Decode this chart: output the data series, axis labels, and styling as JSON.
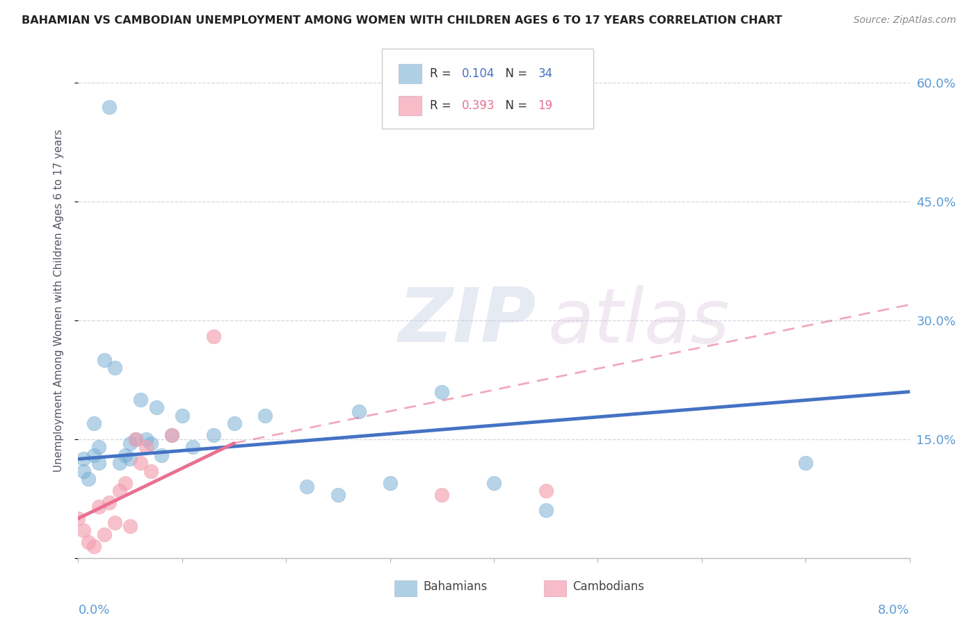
{
  "title": "BAHAMIAN VS CAMBODIAN UNEMPLOYMENT AMONG WOMEN WITH CHILDREN AGES 6 TO 17 YEARS CORRELATION CHART",
  "source": "Source: ZipAtlas.com",
  "ylabel": "Unemployment Among Women with Children Ages 6 to 17 years",
  "xlim": [
    0.0,
    8.0
  ],
  "ylim": [
    0.0,
    65.0
  ],
  "ytick_vals": [
    0,
    15,
    30,
    45,
    60
  ],
  "ytick_labels": [
    "",
    "15.0%",
    "30.0%",
    "45.0%",
    "60.0%"
  ],
  "bahamians_R": 0.104,
  "bahamians_N": 34,
  "cambodians_R": 0.393,
  "cambodians_N": 19,
  "blue_color": "#7BAFD4",
  "pink_color": "#F4A0B0",
  "blue_line_color": "#4472C4",
  "pink_line_color": "#E87090",
  "axis_label_color": "#5B9BD5",
  "background_color": "#FFFFFF",
  "bah_x": [
    0.05,
    0.05,
    0.1,
    0.15,
    0.15,
    0.2,
    0.2,
    0.25,
    0.3,
    0.35,
    0.4,
    0.45,
    0.5,
    0.5,
    0.55,
    0.6,
    0.65,
    0.7,
    0.75,
    0.8,
    0.9,
    1.0,
    1.1,
    1.3,
    1.5,
    1.8,
    2.2,
    2.5,
    3.0,
    3.5,
    4.0,
    4.5,
    7.0,
    2.7
  ],
  "bah_y": [
    11.0,
    12.5,
    10.0,
    17.0,
    13.0,
    12.0,
    14.0,
    25.0,
    57.0,
    24.0,
    12.0,
    13.0,
    12.5,
    14.5,
    15.0,
    20.0,
    15.0,
    14.5,
    19.0,
    13.0,
    15.5,
    18.0,
    14.0,
    15.5,
    17.0,
    18.0,
    9.0,
    8.0,
    9.5,
    21.0,
    9.5,
    6.0,
    12.0,
    18.5
  ],
  "cam_x": [
    0.0,
    0.05,
    0.1,
    0.15,
    0.2,
    0.25,
    0.3,
    0.35,
    0.4,
    0.45,
    0.5,
    0.55,
    0.6,
    0.65,
    0.7,
    0.9,
    1.3,
    4.5,
    3.5
  ],
  "cam_y": [
    5.0,
    3.5,
    2.0,
    1.5,
    6.5,
    3.0,
    7.0,
    4.5,
    8.5,
    9.5,
    4.0,
    15.0,
    12.0,
    14.0,
    11.0,
    15.5,
    28.0,
    8.5,
    8.0
  ],
  "bah_line_x0": 0.0,
  "bah_line_y0": 12.5,
  "bah_line_x1": 8.0,
  "bah_line_y1": 21.0,
  "cam_solid_x0": 0.0,
  "cam_solid_y0": 5.0,
  "cam_solid_x1": 1.5,
  "cam_solid_y1": 14.5,
  "cam_dash_x0": 1.5,
  "cam_dash_y0": 14.5,
  "cam_dash_x1": 8.0,
  "cam_dash_y1": 32.0
}
